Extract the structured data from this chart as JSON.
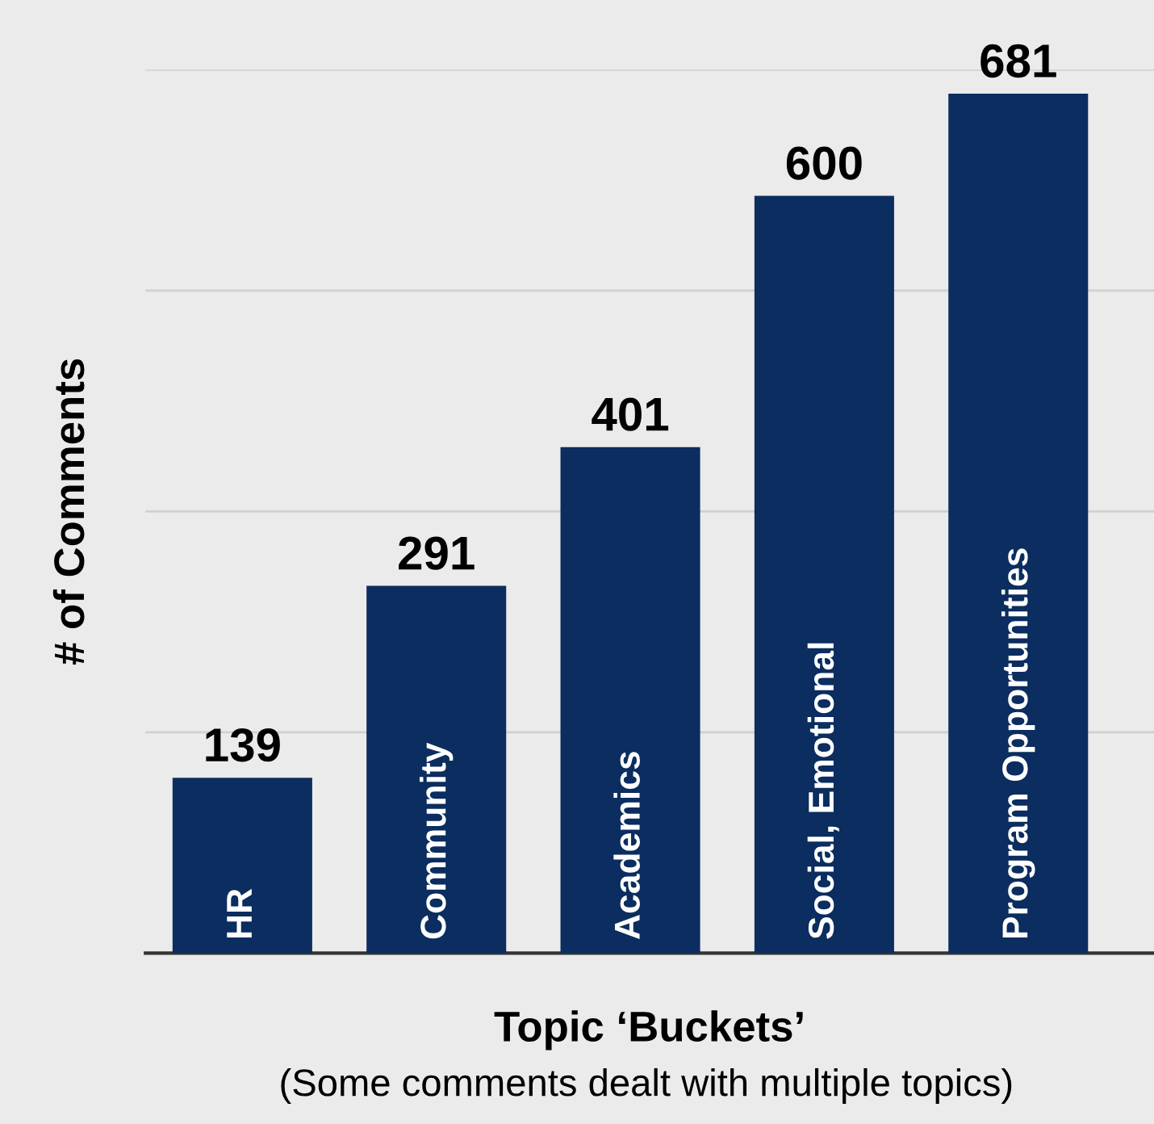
{
  "chart_data": {
    "type": "bar",
    "xlabel": "Topic ‘Buckets’",
    "ylabel": "# of Comments",
    "categories": [
      "HR",
      "Community",
      "Academics",
      "Social, Emotional",
      "Program Opportunities"
    ],
    "values": [
      139,
      291,
      401,
      600,
      681
    ],
    "color": "#0b2d5f",
    "ylim": [
      0,
      700
    ],
    "yticks": [
      {
        "value": 0,
        "label": null
      },
      {
        "value": 175,
        "label": null
      },
      {
        "value": 350,
        "label": null
      },
      {
        "value": 525,
        "label": null
      },
      {
        "value": 700,
        "label": null
      }
    ],
    "grid": "y",
    "data_labels": true,
    "tick_labels": "x",
    "annotations": [
      "(Some comments dealt with multiple topics)"
    ]
  }
}
